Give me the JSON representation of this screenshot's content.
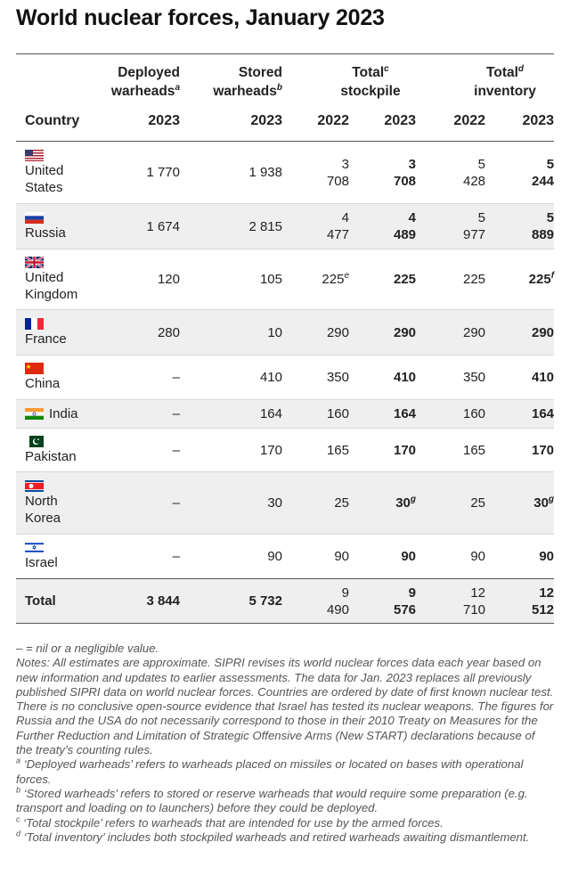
{
  "title": "World nuclear forces, January 2023",
  "header": {
    "deployed_l1": "Deployed",
    "deployed_l2": "warheads",
    "deployed_sup": "a",
    "stored_l1": "Stored",
    "stored_l2": "warheads",
    "stored_sup": "b",
    "stockpile_l1": "Total",
    "stockpile_sup": "c",
    "stockpile_l2": "stockpile",
    "inventory_l1": "Total",
    "inventory_sup": "d",
    "inventory_l2": "inventory",
    "country": "Country",
    "y_deployed": "2023",
    "y_stored": "2023",
    "y_stock_2022": "2022",
    "y_stock_2023": "2023",
    "y_inv_2022": "2022",
    "y_inv_2023": "2023"
  },
  "rows": [
    {
      "c1": "United",
      "c2": "States",
      "flag": "us-flag-icon",
      "deployed": "1 770",
      "stored": "1 938",
      "stock22a": "3",
      "stock22b": "708",
      "stock23a": "3",
      "stock23b": "708",
      "inv22a": "5",
      "inv22b": "428",
      "inv23a": "5",
      "inv23b": "244"
    },
    {
      "c1": "Russia",
      "flag": "russia-flag-icon",
      "deployed": "1 674",
      "stored": "2 815",
      "stock22a": "4",
      "stock22b": "477",
      "stock23a": "4",
      "stock23b": "489",
      "inv22a": "5",
      "inv22b": "977",
      "inv23a": "5",
      "inv23b": "889"
    },
    {
      "c1": "United",
      "c2": "Kingdom",
      "flag": "uk-flag-icon",
      "deployed": "120",
      "stored": "105",
      "stock22": "225",
      "stock22_sup": "e",
      "stock23": "225",
      "inv22": "225",
      "inv23": "225",
      "inv23_sup": "f"
    },
    {
      "c1": "France",
      "flag": "france-flag-icon",
      "deployed": "280",
      "stored": "10",
      "stock22": "290",
      "stock23": "290",
      "inv22": "290",
      "inv23": "290"
    },
    {
      "c1": "China",
      "flag": "china-flag-icon",
      "deployed": "–",
      "stored": "410",
      "stock22": "350",
      "stock23": "410",
      "inv22": "350",
      "inv23": "410"
    },
    {
      "c1": "India",
      "flag": "india-flag-icon",
      "deployed": "–",
      "stored": "164",
      "stock22": "160",
      "stock23": "164",
      "inv22": "160",
      "inv23": "164"
    },
    {
      "c1": "Pakistan",
      "flag": "pakistan-flag-icon",
      "deployed": "–",
      "stored": "170",
      "stock22": "165",
      "stock23": "170",
      "inv22": "165",
      "inv23": "170"
    },
    {
      "c1": "North",
      "c2": "Korea",
      "flag": "north-korea-flag-icon",
      "deployed": "–",
      "stored": "30",
      "stock22": "25",
      "stock23": "30",
      "stock23_sup": "g",
      "inv22": "25",
      "inv23": "30",
      "inv23_sup": "g"
    },
    {
      "c1": "Israel",
      "flag": "israel-flag-icon",
      "deployed": "–",
      "stored": "90",
      "stock22": "90",
      "stock23": "90",
      "inv22": "90",
      "inv23": "90"
    }
  ],
  "total": {
    "label": "Total",
    "deployed": "3 844",
    "stored": "5 732",
    "stock22a": "9",
    "stock22b": "490",
    "stock23a": "9",
    "stock23b": "576",
    "inv22a": "12",
    "inv22b": "710",
    "inv23a": "12",
    "inv23b": "512"
  },
  "notes": {
    "nil": "– = nil or a negligible value.",
    "main": "Notes: All estimates are approximate. SIPRI revises its world nuclear forces data each year based on new information and updates to earlier assessments. The data for Jan. 2023 replaces all previously published SIPRI data on world nuclear forces. Countries are ordered by date of first known nuclear test. There is no conclusive open-source evidence that Israel has tested its nuclear weapons. The figures for Russia and the USA do not necessarily correspond to those in their 2010 Treaty on Measures for the Further Reduction and Limitation of Strategic Offensive Arms (New START) declarations because of the treaty’s counting rules.",
    "a_sup": "a",
    "a": "‘Deployed warheads’ refers to warheads placed on missiles or located on bases with operational forces.",
    "b_sup": "b",
    "b": "‘Stored warheads’ refers to stored or reserve warheads that would require some preparation (e.g. transport and loading on to launchers) before they could be deployed.",
    "c_sup": "c",
    "c": "‘Total stockpile’ refers to warheads that are intended for use by the armed forces.",
    "d_sup": "d",
    "d": "‘Total inventory’ includes both stockpiled warheads and retired warheads awaiting dismantlement."
  },
  "colors": {
    "shade": "#efefef",
    "rule": "#555555",
    "notes_text": "#555555"
  }
}
